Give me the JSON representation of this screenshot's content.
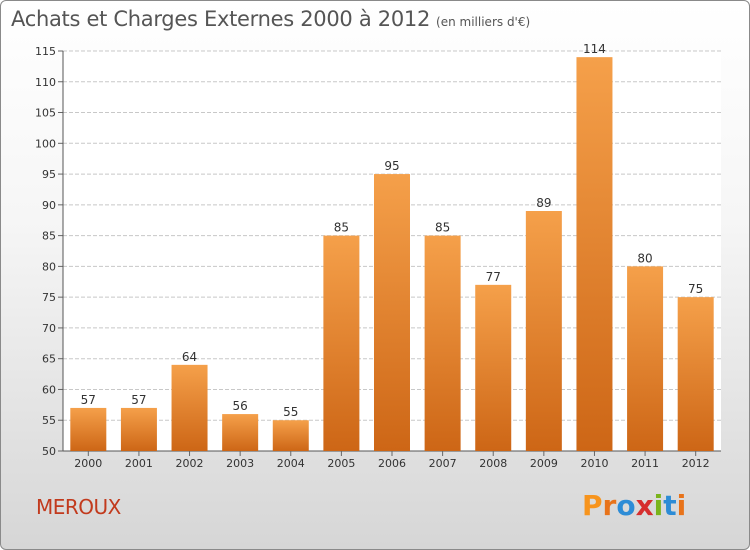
{
  "header": {
    "title": "Achats et Charges Externes 2000 à 2012",
    "unit": "(en milliers d'€)"
  },
  "footer": {
    "commune": "MEROUX",
    "logo": "Proxiti"
  },
  "colors": {
    "bar_light": "#f5a04a",
    "bar_dark": "#cd6616",
    "commune": "#c23a1d",
    "logo_letters": [
      "#f7941d",
      "#e8731a",
      "#2d8cd6",
      "#d62e2e",
      "#7ab41c",
      "#2d8cd6",
      "#e8731a"
    ]
  },
  "chart_data": {
    "type": "bar",
    "categories": [
      "2000",
      "2001",
      "2002",
      "2003",
      "2004",
      "2005",
      "2006",
      "2007",
      "2008",
      "2009",
      "2010",
      "2011",
      "2012"
    ],
    "values": [
      57,
      57,
      64,
      56,
      55,
      85,
      95,
      85,
      77,
      89,
      114,
      80,
      75
    ],
    "ylim": [
      50,
      115
    ],
    "yticks": [
      50,
      55,
      60,
      65,
      70,
      75,
      80,
      85,
      90,
      95,
      100,
      105,
      110,
      115
    ],
    "grid": true,
    "data_labels": true
  }
}
